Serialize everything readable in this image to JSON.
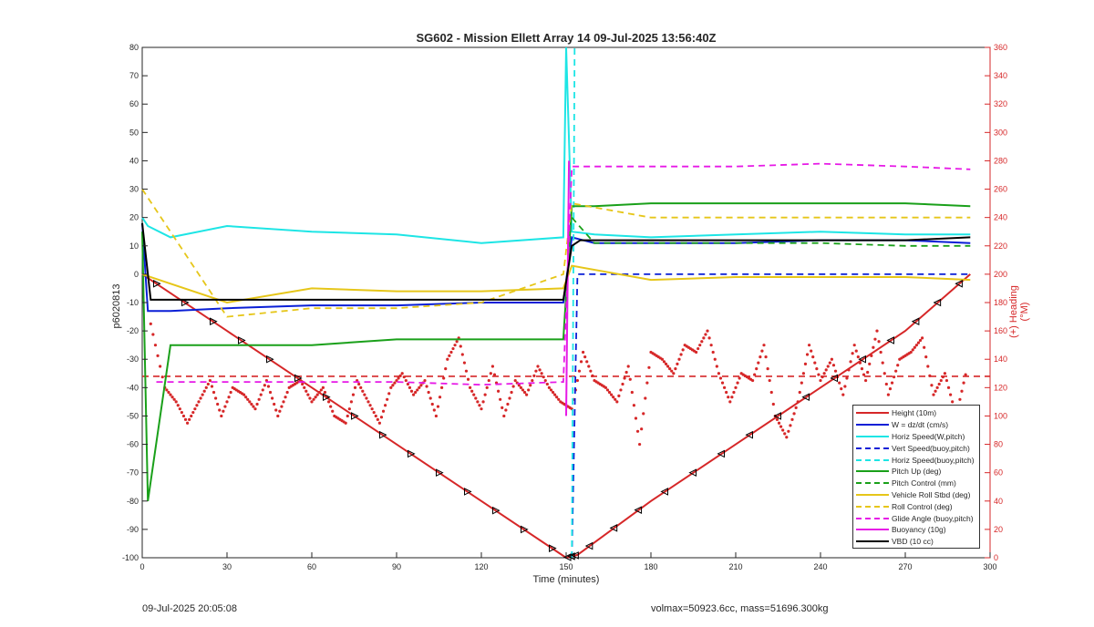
{
  "chart_data": {
    "type": "line",
    "title": "SG602 - Mission Ellett Array 14 09-Jul-2025 13:56:40Z",
    "xlabel": "Time (minutes)",
    "ylabel": "p6020813",
    "ylabel_right": "(+) Heading (°M)",
    "xlim": [
      0,
      300
    ],
    "ylim": [
      -100,
      80
    ],
    "ylim_right": [
      0,
      360
    ],
    "x_ticks": [
      "0",
      "30",
      "60",
      "90",
      "120",
      "150",
      "180",
      "210",
      "240",
      "270",
      "300"
    ],
    "y_ticks": [
      "-100",
      "-90",
      "-80",
      "-70",
      "-60",
      "-50",
      "-40",
      "-30",
      "-20",
      "-10",
      "0",
      "10",
      "20",
      "30",
      "40",
      "50",
      "60",
      "70",
      "80"
    ],
    "y_ticks_right": [
      "0",
      "20",
      "40",
      "60",
      "80",
      "100",
      "120",
      "140",
      "160",
      "180",
      "200",
      "220",
      "240",
      "260",
      "280",
      "300",
      "320",
      "340",
      "360"
    ],
    "legend_position": "bottom-right",
    "grid": false,
    "series": [
      {
        "name": "Height (10m)",
        "color": "#d62728",
        "style": "solid",
        "x": [
          0,
          30,
          60,
          90,
          120,
          150,
          154,
          180,
          210,
          240,
          270,
          293
        ],
        "values": [
          0,
          -20,
          -40,
          -60,
          -80,
          -100,
          -99,
          -80,
          -60,
          -40,
          -20,
          0
        ]
      },
      {
        "name": "W = dz/dt (cm/s)",
        "color": "#0a1fd6",
        "style": "solid",
        "x": [
          0,
          2,
          10,
          30,
          60,
          90,
          120,
          149,
          152,
          160,
          180,
          210,
          240,
          270,
          293
        ],
        "values": [
          18,
          -13,
          -13,
          -12,
          -11,
          -11,
          -10,
          -10,
          13,
          11,
          11,
          11,
          12,
          12,
          11
        ]
      },
      {
        "name": "Horiz Speed(W,pitch)",
        "color": "#1de5e5",
        "style": "solid",
        "x": [
          0,
          2,
          10,
          30,
          60,
          90,
          120,
          149,
          150,
          152,
          160,
          180,
          210,
          240,
          270,
          293
        ],
        "values": [
          20,
          17,
          13,
          17,
          15,
          14,
          11,
          13,
          80,
          15,
          14,
          13,
          14,
          15,
          14,
          14
        ]
      },
      {
        "name": "Vert Speed(buoy,pitch)",
        "color": "#0a1fd6",
        "style": "dashed",
        "x": [
          152,
          154,
          293
        ],
        "values": [
          -100,
          0,
          0
        ]
      },
      {
        "name": "Horiz Speed(buoy,pitch)",
        "color": "#1de5e5",
        "style": "dashed",
        "x": [
          152,
          153
        ],
        "values": [
          -100,
          80
        ]
      },
      {
        "name": "Pitch Up (deg)",
        "color": "#1aa01a",
        "style": "solid",
        "x": [
          0,
          2,
          10,
          30,
          60,
          90,
          120,
          149,
          152,
          160,
          180,
          210,
          240,
          270,
          293
        ],
        "values": [
          15,
          -80,
          -25,
          -25,
          -25,
          -23,
          -23,
          -23,
          24,
          24,
          25,
          25,
          25,
          25,
          24
        ]
      },
      {
        "name": "Pitch Control (mm)",
        "color": "#1aa01a",
        "style": "dashed",
        "x": [
          152,
          160,
          180,
          210,
          240,
          270,
          293
        ],
        "values": [
          20,
          11,
          11,
          11,
          11,
          10,
          10
        ]
      },
      {
        "name": "Vehicle Roll Stbd (deg)",
        "color": "#e6c619",
        "style": "solid",
        "x": [
          0,
          30,
          60,
          90,
          120,
          149,
          152,
          180,
          210,
          240,
          270,
          293
        ],
        "values": [
          0,
          -10,
          -5,
          -6,
          -6,
          -5,
          3,
          -2,
          -1,
          -1,
          -1,
          -2
        ]
      },
      {
        "name": "Roll Control (deg)",
        "color": "#e6c619",
        "style": "dashed",
        "x": [
          0,
          30,
          60,
          90,
          120,
          149,
          152,
          180,
          210,
          240,
          270,
          293
        ],
        "values": [
          30,
          -15,
          -12,
          -12,
          -10,
          0,
          25,
          20,
          20,
          20,
          20,
          20
        ]
      },
      {
        "name": "Glide Angle (buoy,pitch)",
        "color": "#e619e6",
        "style": "dashed",
        "x": [
          5,
          30,
          60,
          90,
          120,
          149,
          152,
          180,
          210,
          240,
          270,
          293
        ],
        "values": [
          -38,
          -38,
          -38,
          -38,
          -39,
          -38,
          38,
          38,
          38,
          39,
          38,
          37
        ]
      },
      {
        "name": "Buoyancy (10g)",
        "color": "#e619e6",
        "style": "solid",
        "x": [
          150,
          151
        ],
        "values": [
          -50,
          40
        ]
      },
      {
        "name": "VBD (10 cc)",
        "color": "#000000",
        "style": "solid",
        "x": [
          0,
          3,
          10,
          30,
          60,
          90,
          120,
          149,
          152,
          155,
          180,
          210,
          240,
          270,
          293
        ],
        "values": [
          18,
          -9,
          -9,
          -9,
          -9,
          -9,
          -9,
          -9,
          10,
          12,
          12,
          12,
          12,
          12,
          13
        ]
      }
    ],
    "heading": {
      "name": "Heading",
      "color": "#d62728",
      "axis": "right",
      "x": [
        3,
        8,
        12,
        16,
        20,
        24,
        28,
        32,
        36,
        40,
        44,
        48,
        52,
        56,
        60,
        64,
        68,
        72,
        76,
        80,
        84,
        88,
        92,
        96,
        100,
        104,
        108,
        112,
        116,
        120,
        124,
        128,
        132,
        136,
        140,
        144,
        148,
        152,
        156,
        160,
        164,
        168,
        172,
        176,
        180,
        184,
        188,
        192,
        196,
        200,
        204,
        208,
        212,
        216,
        220,
        224,
        228,
        232,
        236,
        240,
        244,
        248,
        252,
        256,
        260,
        264,
        268,
        272,
        276,
        280,
        284,
        288,
        292
      ],
      "values": [
        165,
        120,
        110,
        95,
        110,
        125,
        100,
        120,
        115,
        105,
        125,
        100,
        120,
        125,
        110,
        120,
        100,
        95,
        125,
        110,
        95,
        120,
        130,
        115,
        125,
        100,
        140,
        155,
        120,
        105,
        135,
        100,
        125,
        115,
        135,
        120,
        110,
        105,
        145,
        125,
        120,
        110,
        135,
        80,
        145,
        140,
        130,
        150,
        145,
        160,
        130,
        110,
        130,
        125,
        150,
        100,
        85,
        110,
        150,
        125,
        140,
        115,
        150,
        125,
        160,
        115,
        140,
        145,
        155,
        115,
        130,
        100,
        135
      ]
    },
    "reference_heading": {
      "color": "#d62728",
      "style": "dashed",
      "value": 128
    }
  },
  "footer": {
    "timestamp": "09-Jul-2025 20:05:08",
    "volmax": "volmax=50923.6cc, mass=51696.300kg"
  }
}
